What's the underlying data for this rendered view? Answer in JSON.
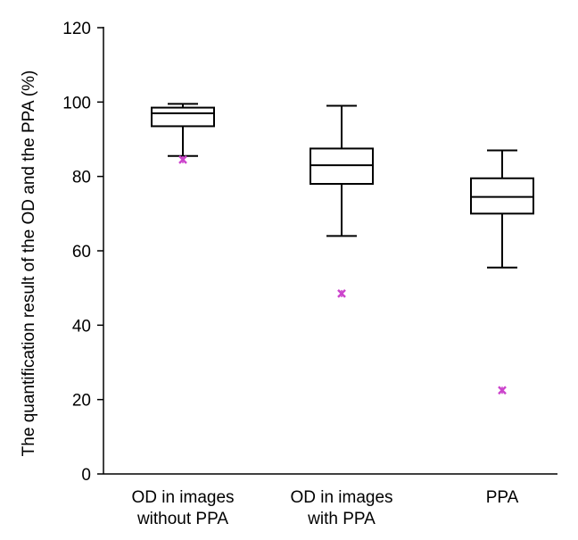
{
  "chart_data": {
    "type": "box",
    "ylabel": "The quantification result of the OD and the PPA (%)",
    "xlabel": "",
    "ylim": [
      0,
      120
    ],
    "yticks": [
      0,
      20,
      40,
      60,
      80,
      100,
      120
    ],
    "grid": false,
    "categories": [
      [
        "OD in images",
        "without PPA"
      ],
      [
        "OD in images",
        "with PPA"
      ],
      [
        "PPA"
      ]
    ],
    "boxes": [
      {
        "whisker_low": 85.5,
        "q1": 93.5,
        "median": 97,
        "q3": 98.5,
        "whisker_high": 99.5,
        "outliers": [
          84.5
        ]
      },
      {
        "whisker_low": 64,
        "q1": 78,
        "median": 83,
        "q3": 87.5,
        "whisker_high": 99,
        "outliers": [
          48.5
        ]
      },
      {
        "whisker_low": 55.5,
        "q1": 70,
        "median": 74.5,
        "q3": 79.5,
        "whisker_high": 87,
        "outliers": [
          22.5
        ]
      }
    ],
    "colors": {
      "box": "#000000",
      "outlier": "#cc44cc"
    }
  }
}
